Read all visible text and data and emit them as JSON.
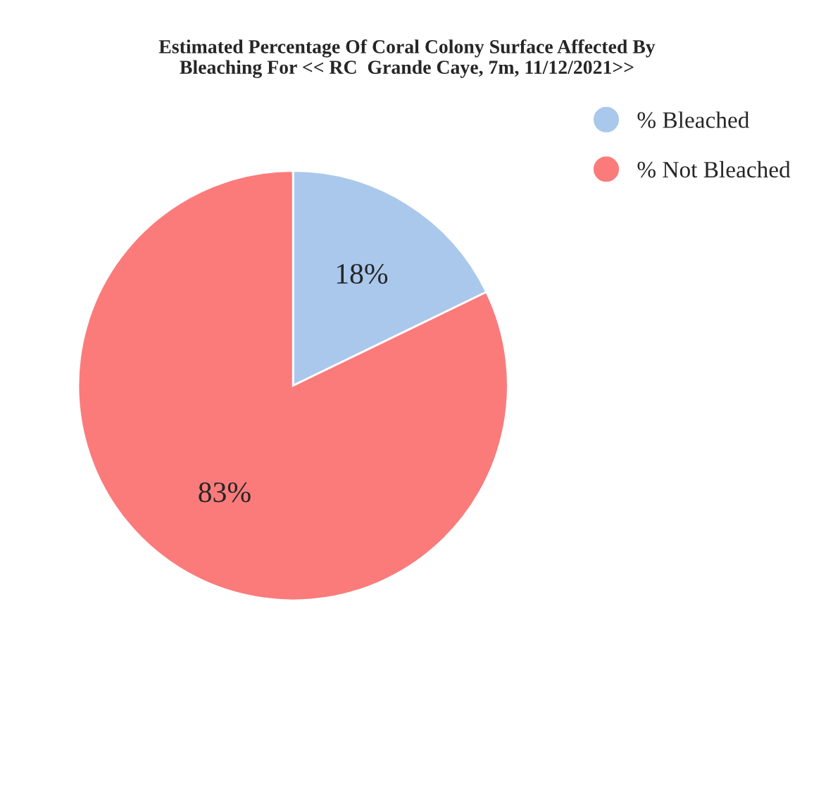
{
  "chart_data": {
    "type": "pie",
    "title": "Estimated Percentage Of Coral Colony Surface Affected By\nBleaching For << RC  Grande Caye, 7m, 11/12/2021>>",
    "categories": [
      "% Bleached",
      "% Not Bleached"
    ],
    "values": [
      18,
      83
    ],
    "value_labels": [
      "18%",
      "83%"
    ],
    "colors": [
      "#a9c8ec",
      "#fb7b7b"
    ],
    "legend": "top right"
  }
}
